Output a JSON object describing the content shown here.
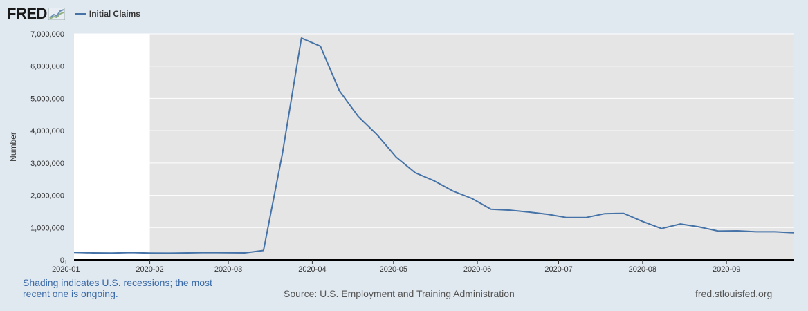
{
  "header": {
    "logo_text": "FRED",
    "logo_icon": "chart-trend-icon"
  },
  "footer": {
    "recession_note": "Shading indicates U.S. recessions; the most recent one is ongoing.",
    "source": "Source: U.S. Employment and Training Administration",
    "site": "fred.stlouisfed.org"
  },
  "colors": {
    "series": "#4572a7",
    "recession_shading": "#e5e5e5",
    "background": "#e1e9f0",
    "plot_background": "#ffffff"
  },
  "chart_data": {
    "type": "line",
    "ylabel": "Number",
    "ylim": [
      0,
      7000000
    ],
    "yticks": [
      0,
      1000000,
      2000000,
      3000000,
      4000000,
      5000000,
      6000000,
      7000000
    ],
    "ytick_labels": [
      "0",
      "1,000,000",
      "2,000,000",
      "3,000,000",
      "4,000,000",
      "5,000,000",
      "6,000,000",
      "7,000,000"
    ],
    "xlim": [
      "2020-01-04",
      "2020-09-26"
    ],
    "xticks": [
      "2020-01-01",
      "2020-02-01",
      "2020-03-01",
      "2020-04-01",
      "2020-05-01",
      "2020-06-01",
      "2020-07-01",
      "2020-08-01",
      "2020-09-01"
    ],
    "xtick_labels": [
      "2020-01",
      "2020-02",
      "2020-03",
      "2020-04",
      "2020-05",
      "2020-06",
      "2020-07",
      "2020-08",
      "2020-09"
    ],
    "recession": {
      "start": "2020-02-01",
      "end": "2020-09-26"
    },
    "grid": true,
    "legend": "top-left",
    "series": [
      {
        "name": "Initial Claims",
        "x": [
          "2020-01-04",
          "2020-01-11",
          "2020-01-18",
          "2020-01-25",
          "2020-02-01",
          "2020-02-08",
          "2020-02-15",
          "2020-02-22",
          "2020-02-29",
          "2020-03-07",
          "2020-03-14",
          "2020-03-21",
          "2020-03-28",
          "2020-04-04",
          "2020-04-11",
          "2020-04-18",
          "2020-04-25",
          "2020-05-02",
          "2020-05-09",
          "2020-05-16",
          "2020-05-23",
          "2020-05-30",
          "2020-06-06",
          "2020-06-13",
          "2020-06-20",
          "2020-06-27",
          "2020-07-04",
          "2020-07-11",
          "2020-07-18",
          "2020-07-25",
          "2020-08-01",
          "2020-08-08",
          "2020-08-15",
          "2020-08-22",
          "2020-08-29",
          "2020-09-05",
          "2020-09-12",
          "2020-09-19",
          "2020-09-26"
        ],
        "values": [
          230000,
          215000,
          210000,
          225000,
          210000,
          205000,
          215000,
          225000,
          220000,
          215000,
          290000,
          3300000,
          6870000,
          6620000,
          5240000,
          4440000,
          3870000,
          3180000,
          2700000,
          2450000,
          2130000,
          1900000,
          1570000,
          1540000,
          1480000,
          1410000,
          1310000,
          1310000,
          1430000,
          1440000,
          1190000,
          970000,
          1110000,
          1020000,
          890000,
          900000,
          870000,
          870000,
          840000
        ]
      }
    ]
  }
}
